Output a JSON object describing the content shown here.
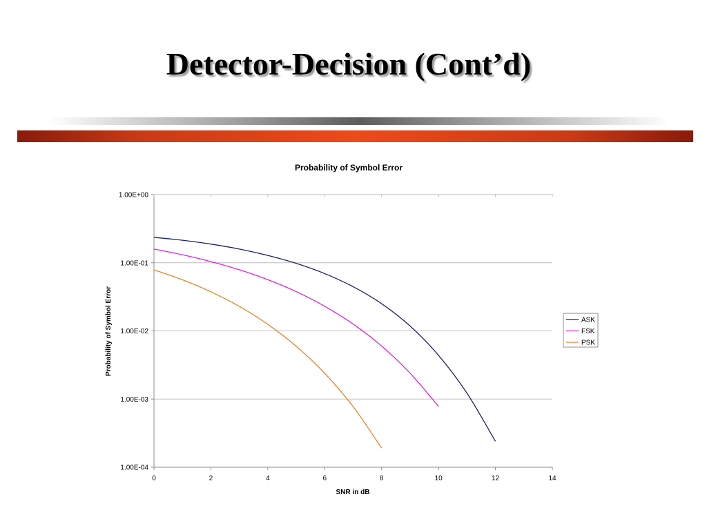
{
  "slide": {
    "title": "Detector-Decision (Cont’d)",
    "accent_color": "#e8441a"
  },
  "chart_data": {
    "type": "line",
    "title": "Probability of Symbol Error",
    "xlabel": "SNR in dB",
    "ylabel": "Probability of Symbol Error",
    "xlim": [
      0,
      14
    ],
    "ylim": [
      0.0001,
      1
    ],
    "yscale": "log",
    "x_ticks": [
      "0",
      "2",
      "4",
      "6",
      "8",
      "10",
      "12",
      "14"
    ],
    "y_ticks": [
      "1.00E+00",
      "1.00E-01",
      "1.00E-02",
      "1.00E-03",
      "1.00E-04"
    ],
    "grid": "horizontal",
    "legend_position": "right",
    "series": [
      {
        "name": "ASK",
        "color": "#1b1f6e",
        "x": [
          0,
          1,
          2,
          3,
          4,
          5,
          6,
          7,
          8,
          9,
          10,
          11,
          12
        ],
        "y": [
          0.236,
          0.214,
          0.188,
          0.159,
          0.128,
          0.0979,
          0.0694,
          0.0445,
          0.0251,
          0.0118,
          0.00438,
          0.00122,
          0.00024
        ]
      },
      {
        "name": "FSK",
        "color": "#e020e0",
        "x": [
          0,
          1,
          2,
          3,
          4,
          5,
          6,
          7,
          8,
          9,
          10
        ],
        "y": [
          0.159,
          0.131,
          0.104,
          0.0789,
          0.0565,
          0.0377,
          0.023,
          0.0126,
          0.006,
          0.0024,
          0.00078
        ]
      },
      {
        "name": "PSK",
        "color": "#e8842a",
        "x": [
          0,
          1,
          2,
          3,
          4,
          5,
          6,
          7,
          8
        ],
        "y": [
          0.0786,
          0.0563,
          0.0375,
          0.0229,
          0.0125,
          0.00595,
          0.00239,
          0.000773,
          0.000191
        ]
      }
    ]
  }
}
